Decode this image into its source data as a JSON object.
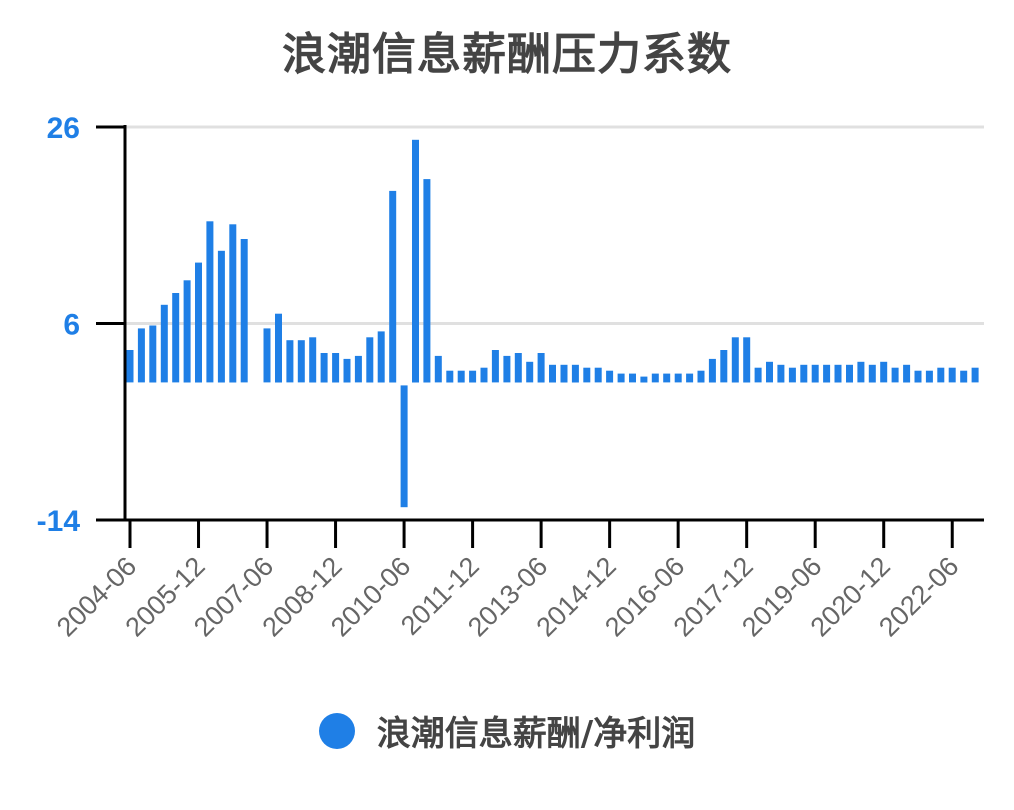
{
  "title": "浪潮信息薪酬压力系数",
  "legend": {
    "items": [
      {
        "label": "浪潮信息薪酬/净利润",
        "color": "#1f7fe6",
        "shape": "circle"
      }
    ],
    "position": "bottom"
  },
  "colors": {
    "bar": "#1f7fe6",
    "axis": "#000000",
    "grid": "#e0e0e0",
    "title": "#444444",
    "ytick": "#1f7fe6",
    "xtick": "#666666"
  },
  "chart_data": {
    "type": "bar",
    "title": "浪潮信息薪酬压力系数",
    "xlabel": "",
    "ylabel": "",
    "ylim": [
      -14,
      26
    ],
    "yticks": [
      26,
      6,
      -14
    ],
    "grid": true,
    "legend_position": "bottom",
    "xtick_labels": [
      "2004-06",
      "2005-12",
      "2007-06",
      "2008-12",
      "2010-06",
      "2011-12",
      "2013-06",
      "2014-12",
      "2016-06",
      "2017-12",
      "2019-06",
      "2020-12",
      "2022-06"
    ],
    "categories": [
      "2004-06",
      "2004-09",
      "2004-12",
      "2005-03",
      "2005-06",
      "2005-09",
      "2005-12",
      "2006-03",
      "2006-06",
      "2006-09",
      "2006-12",
      "2007-03",
      "2007-06",
      "2007-09",
      "2007-12",
      "2008-03",
      "2008-06",
      "2008-09",
      "2008-12",
      "2009-03",
      "2009-06",
      "2009-09",
      "2009-12",
      "2010-03",
      "2010-06",
      "2010-09",
      "2010-12",
      "2011-03",
      "2011-06",
      "2011-09",
      "2011-12",
      "2012-03",
      "2012-06",
      "2012-09",
      "2012-12",
      "2013-03",
      "2013-06",
      "2013-09",
      "2013-12",
      "2014-03",
      "2014-06",
      "2014-09",
      "2014-12",
      "2015-03",
      "2015-06",
      "2015-09",
      "2015-12",
      "2016-03",
      "2016-06",
      "2016-09",
      "2016-12",
      "2017-03",
      "2017-06",
      "2017-09",
      "2017-12",
      "2018-03",
      "2018-06",
      "2018-09",
      "2018-12",
      "2019-03",
      "2019-06",
      "2019-09",
      "2019-12",
      "2020-03",
      "2020-06",
      "2020-09",
      "2020-12",
      "2021-03",
      "2021-06",
      "2021-09",
      "2021-12",
      "2022-03",
      "2022-06",
      "2022-09",
      "2022-12"
    ],
    "series": [
      {
        "name": "浪潮信息薪酬/净利润",
        "values": [
          3.3,
          5.5,
          5.8,
          7.9,
          9.1,
          10.4,
          12.2,
          16.4,
          13.4,
          16.1,
          14.6,
          null,
          5.5,
          7.0,
          4.3,
          4.3,
          4.6,
          3.0,
          3.0,
          2.4,
          2.7,
          4.6,
          5.2,
          19.5,
          -12.7,
          24.7,
          20.7,
          2.7,
          1.2,
          1.2,
          1.2,
          1.5,
          3.3,
          2.7,
          3.0,
          2.1,
          3.0,
          1.8,
          1.8,
          1.8,
          1.5,
          1.5,
          1.2,
          0.9,
          0.9,
          0.6,
          0.9,
          0.9,
          0.9,
          0.9,
          1.2,
          2.4,
          3.3,
          4.6,
          4.6,
          1.5,
          2.1,
          1.8,
          1.5,
          1.8,
          1.8,
          1.8,
          1.8,
          1.8,
          2.1,
          1.8,
          2.1,
          1.5,
          1.8,
          1.2,
          1.2,
          1.5,
          1.5,
          1.2,
          1.5
        ]
      }
    ]
  }
}
